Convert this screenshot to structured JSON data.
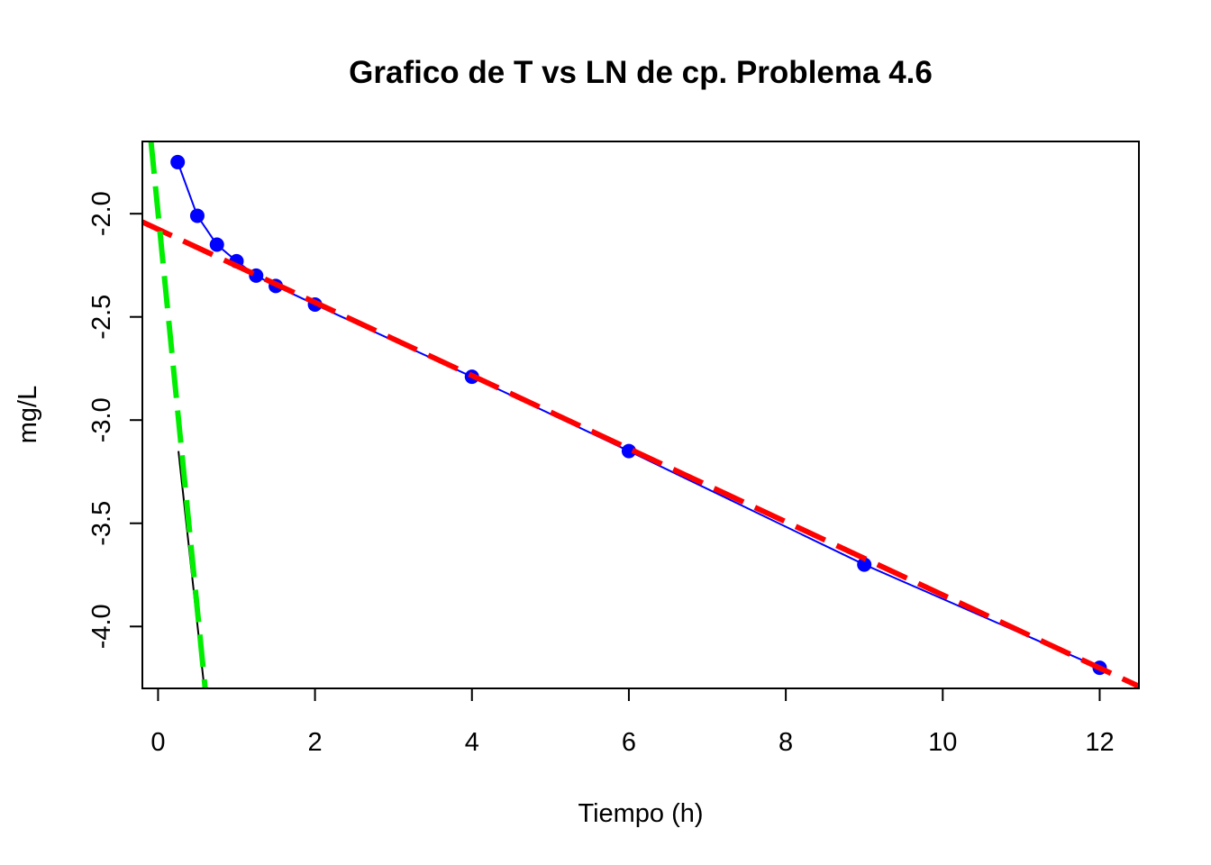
{
  "chart_data": {
    "type": "scatter",
    "title": "Grafico de T vs LN de cp. Problema 4.6",
    "xlabel": "Tiempo (h)",
    "ylabel": "mg/L",
    "xlim": [
      -0.2,
      12.5
    ],
    "ylim": [
      -4.3,
      -1.65
    ],
    "x_ticks": [
      0,
      2,
      4,
      6,
      8,
      10,
      12
    ],
    "x_tick_labels": [
      "0",
      "2",
      "4",
      "6",
      "8",
      "10",
      "12"
    ],
    "y_ticks": [
      -4.0,
      -3.5,
      -3.0,
      -2.5,
      -2.0
    ],
    "y_tick_labels": [
      "-4.0",
      "-3.5",
      "-3.0",
      "-2.5",
      "-2.0"
    ],
    "grid": false,
    "series": [
      {
        "color": "#0000ff",
        "style": "points-and-line",
        "x": [
          0.25,
          0.5,
          0.75,
          1.0,
          1.25,
          1.5,
          2,
          4,
          6,
          9,
          12
        ],
        "y": [
          -1.75,
          -2.01,
          -2.15,
          -2.23,
          -2.3,
          -2.35,
          -2.44,
          -2.79,
          -3.15,
          -3.7,
          -4.2
        ]
      },
      {
        "color": "#000000",
        "style": "line",
        "x": [
          0.26,
          0.59
        ],
        "y": [
          -3.15,
          -4.3
        ]
      },
      {
        "color": "#ff0000",
        "style": "dashed-line",
        "x": [
          -0.2,
          12.5
        ],
        "y": [
          -2.04,
          -4.29
        ]
      },
      {
        "color": "#00ee00",
        "style": "dashed-line",
        "x": [
          -0.09,
          0.6
        ],
        "y": [
          -1.65,
          -4.3
        ]
      }
    ]
  }
}
